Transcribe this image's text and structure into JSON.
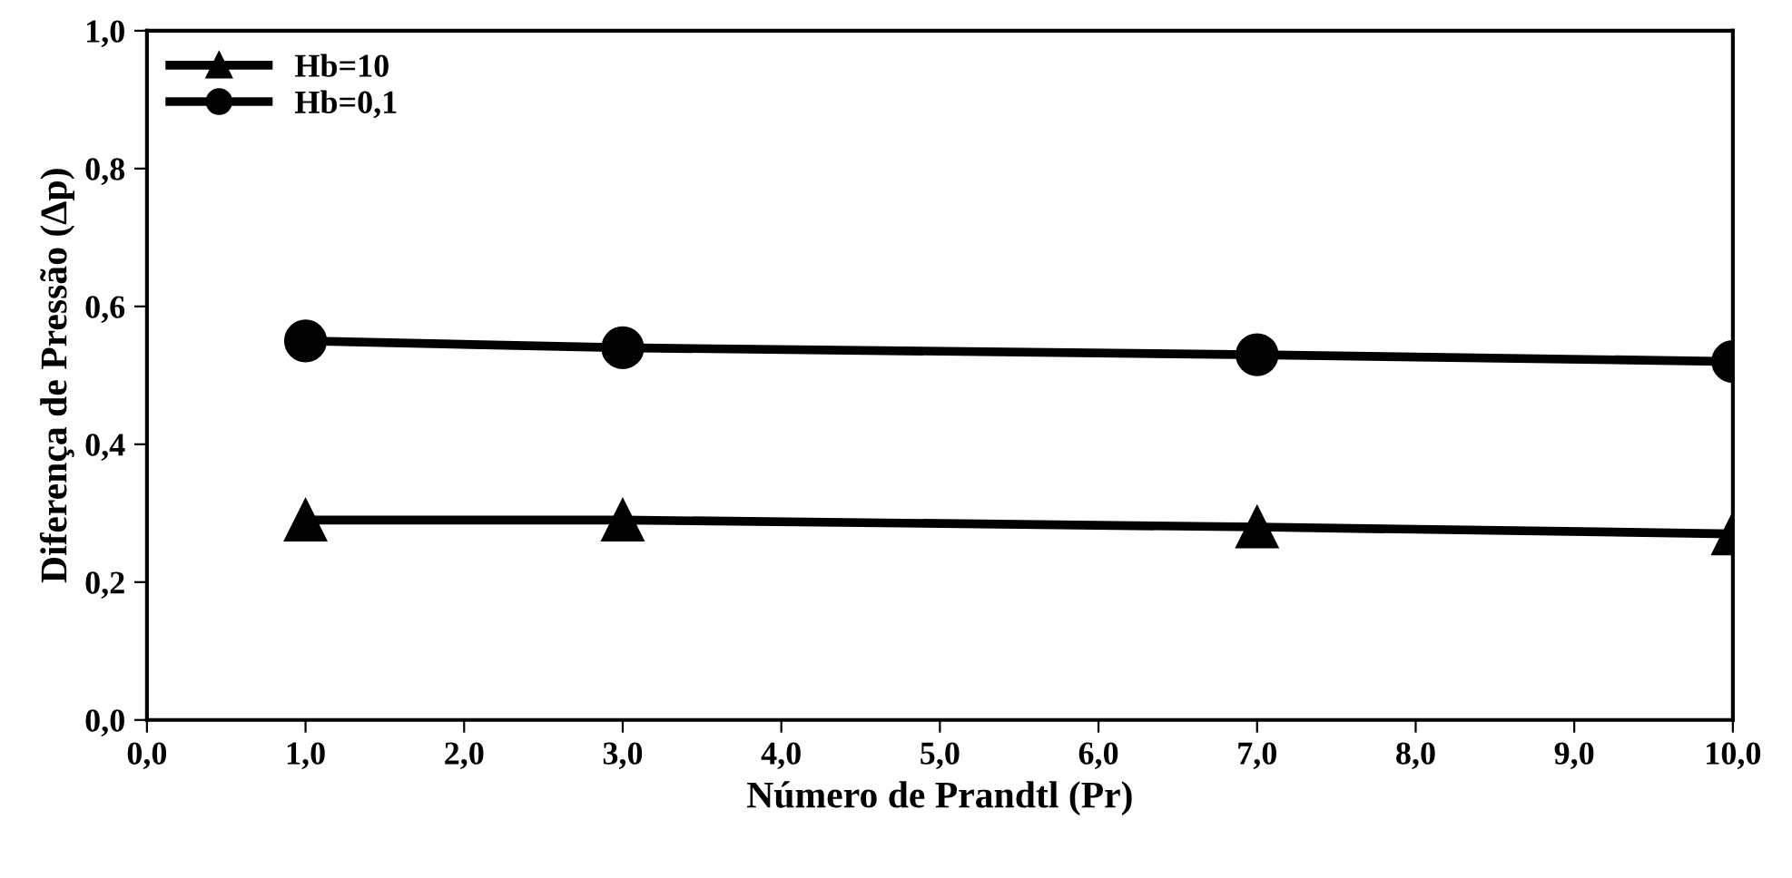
{
  "chart_data": {
    "type": "line",
    "xlabel": "Número de Prandtl (Pr)",
    "ylabel": "Diferença de Pressão (Δp)",
    "x": [
      1,
      3,
      7,
      10
    ],
    "series": [
      {
        "name": "Hb=10",
        "color": "#000000",
        "marker": "triangle",
        "values": [
          0.29,
          0.29,
          0.28,
          0.27
        ]
      },
      {
        "name": "Hb=0,1",
        "color": "#000000",
        "marker": "circle",
        "values": [
          0.55,
          0.54,
          0.53,
          0.52
        ]
      }
    ],
    "xlim": [
      0,
      10
    ],
    "xticks": [
      {
        "value": 0,
        "label": "0,0"
      },
      {
        "value": 1,
        "label": "1,0"
      },
      {
        "value": 2,
        "label": "2,0"
      },
      {
        "value": 3,
        "label": "3,0"
      },
      {
        "value": 4,
        "label": "4,0"
      },
      {
        "value": 5,
        "label": "5,0"
      },
      {
        "value": 6,
        "label": "6,0"
      },
      {
        "value": 7,
        "label": "7,0"
      },
      {
        "value": 8,
        "label": "8,0"
      },
      {
        "value": 9,
        "label": "9,0"
      },
      {
        "value": 10,
        "label": "10,0"
      }
    ],
    "ylim": [
      0,
      1
    ],
    "yticks": [
      {
        "value": 0,
        "label": "0,0"
      },
      {
        "value": 0.2,
        "label": "0,2"
      },
      {
        "value": 0.4,
        "label": "0,4"
      },
      {
        "value": 0.6,
        "label": "0,6"
      },
      {
        "value": 0.8,
        "label": "0,8"
      },
      {
        "value": 1,
        "label": "1,0"
      }
    ],
    "grid": false,
    "legend": "top left",
    "line_style": "solid"
  }
}
